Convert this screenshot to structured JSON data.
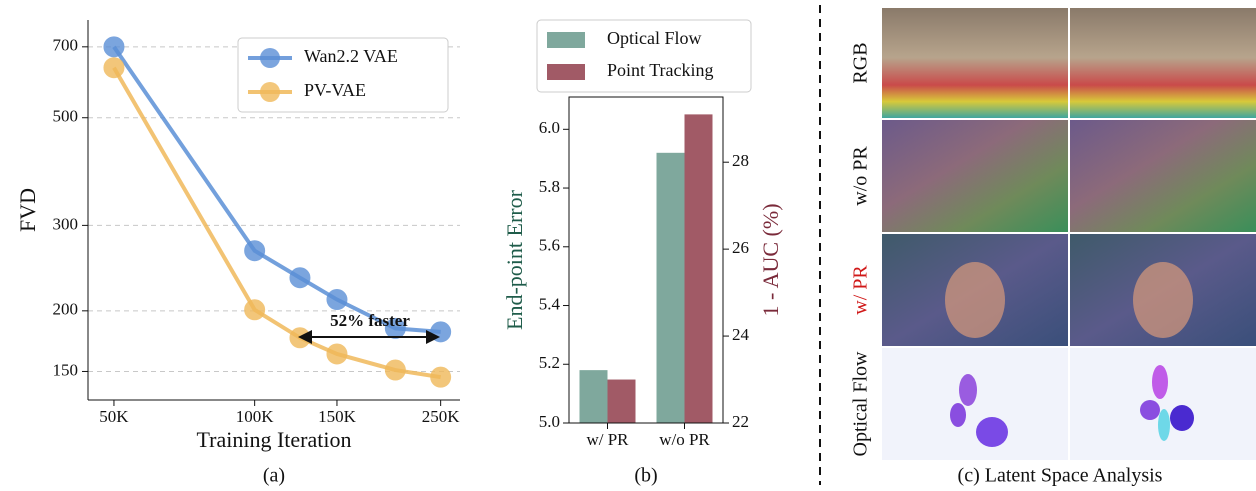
{
  "chart_data": [
    {
      "type": "line",
      "xlabel": "Training Iteration",
      "ylabel": "FVD",
      "caption": "(a)",
      "xscale": "log",
      "yscale": "log",
      "grid": true,
      "legend": "upper right",
      "x": [
        50000,
        100000,
        125000,
        150000,
        200000,
        250000
      ],
      "xlim": [
        44000,
        275000
      ],
      "xticks": [
        {
          "value": 50000,
          "label": "50K"
        },
        {
          "value": 100000,
          "label": "100K"
        },
        {
          "value": 150000,
          "label": "150K"
        },
        {
          "value": 250000,
          "label": "250K"
        }
      ],
      "ylim": [
        131,
        795
      ],
      "yticks": [
        150,
        200,
        300,
        500,
        700
      ],
      "series": [
        {
          "name": "Wan2.2 VAE",
          "color": "#5b8fd6",
          "values": [
            700,
            266,
            234,
            211,
            184,
            181
          ]
        },
        {
          "name": "PV-VAE",
          "color": "#f0b95a",
          "values": [
            634,
            201,
            176,
            163,
            151,
            146
          ]
        }
      ],
      "annotation": "52% faster"
    },
    {
      "type": "bar",
      "ylabel": "End-point Error",
      "y2label": "1 - AUC (%)",
      "caption": "(b)",
      "ylabel_color": "#1f5c4a",
      "y2label_color": "#7a2a3a",
      "legend": "top",
      "categories": [
        "w/ PR",
        "w/o PR"
      ],
      "ylim": [
        5.0,
        6.11
      ],
      "yticks": [
        {
          "value": 5.0,
          "label": "5.0"
        },
        5.2,
        5.4,
        5.6,
        5.8,
        {
          "value": 6.0,
          "label": "6.0"
        }
      ],
      "y2lim": [
        22,
        29.5
      ],
      "y2ticks": [
        22,
        24,
        26,
        28
      ],
      "series": [
        {
          "name": "Optical Flow",
          "color": "#7fa89d",
          "values": [
            5.18,
            5.92
          ]
        },
        {
          "name": "Point Tracking",
          "color": "#a15a66",
          "axis": "y2",
          "values": [
            23.0,
            29.1
          ]
        }
      ]
    },
    {
      "type": "image_grid",
      "caption": "(c) Latent Space Analysis",
      "row_labels": [
        "RGB",
        "w/o PR",
        "w/ PR",
        "Optical Flow"
      ]
    }
  ]
}
